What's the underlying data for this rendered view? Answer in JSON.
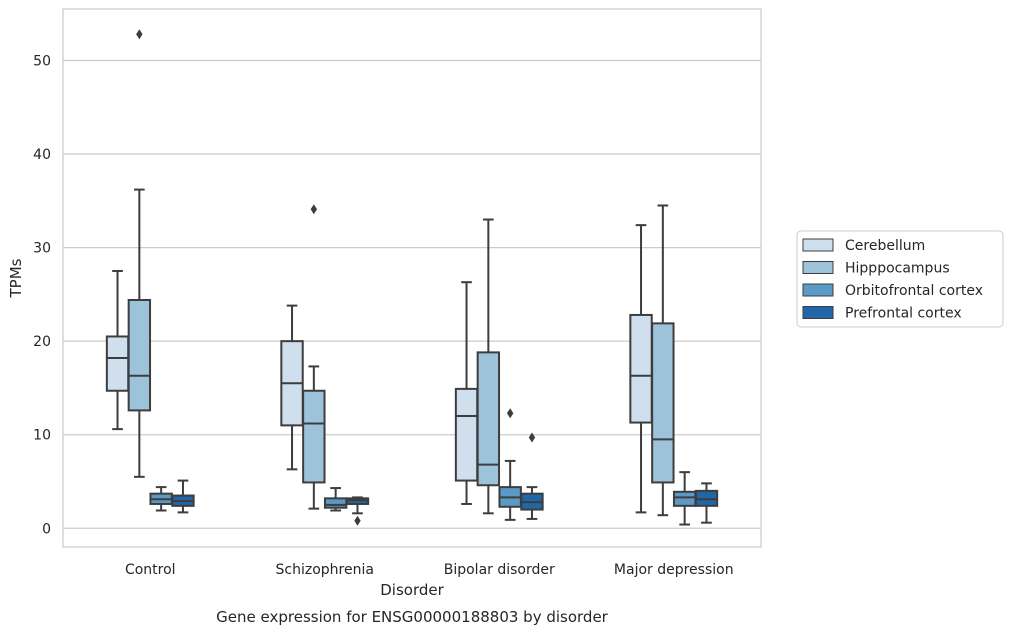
{
  "chart_data": {
    "type": "box",
    "caption": "Gene expression for ENSG00000188803 by disorder",
    "xlabel": "Disorder",
    "ylabel": "TPMs",
    "ylim": [
      -2,
      55.5
    ],
    "yticks": [
      0,
      10,
      20,
      30,
      40,
      50
    ],
    "grid": "horizontal",
    "legend_placement": "right",
    "categories": [
      "Control",
      "Schizophrenia",
      "Bipolar disorder",
      "Major depression"
    ],
    "series": [
      {
        "name": "Cerebellum",
        "color": "#d0dfee",
        "boxes": [
          {
            "whisker_low": 10.6,
            "q1": 14.7,
            "median": 18.2,
            "q3": 20.5,
            "whisker_high": 27.5,
            "outliers": []
          },
          {
            "whisker_low": 6.3,
            "q1": 11.0,
            "median": 15.5,
            "q3": 20.0,
            "whisker_high": 23.8,
            "outliers": []
          },
          {
            "whisker_low": 2.6,
            "q1": 5.1,
            "median": 12.0,
            "q3": 14.9,
            "whisker_high": 26.3,
            "outliers": []
          },
          {
            "whisker_low": 1.7,
            "q1": 11.3,
            "median": 16.3,
            "q3": 22.8,
            "whisker_high": 32.4,
            "outliers": []
          }
        ]
      },
      {
        "name": "Hipppocampus",
        "color": "#9dc3db",
        "boxes": [
          {
            "whisker_low": 5.5,
            "q1": 12.6,
            "median": 16.3,
            "q3": 24.4,
            "whisker_high": 36.2,
            "outliers": [
              52.8
            ]
          },
          {
            "whisker_low": 2.1,
            "q1": 4.9,
            "median": 11.2,
            "q3": 14.7,
            "whisker_high": 17.3,
            "outliers": [
              34.1
            ]
          },
          {
            "whisker_low": 1.6,
            "q1": 4.6,
            "median": 6.8,
            "q3": 18.8,
            "whisker_high": 33.0,
            "outliers": []
          },
          {
            "whisker_low": 1.4,
            "q1": 4.9,
            "median": 9.5,
            "q3": 21.9,
            "whisker_high": 34.5,
            "outliers": []
          }
        ]
      },
      {
        "name": "Orbitofrontal cortex",
        "color": "#5b9ac6",
        "boxes": [
          {
            "whisker_low": 1.9,
            "q1": 2.6,
            "median": 3.1,
            "q3": 3.7,
            "whisker_high": 4.4,
            "outliers": []
          },
          {
            "whisker_low": 1.9,
            "q1": 2.2,
            "median": 2.5,
            "q3": 3.2,
            "whisker_high": 4.3,
            "outliers": []
          },
          {
            "whisker_low": 0.9,
            "q1": 2.3,
            "median": 3.3,
            "q3": 4.4,
            "whisker_high": 7.2,
            "outliers": [
              12.3
            ]
          },
          {
            "whisker_low": 0.4,
            "q1": 2.4,
            "median": 3.3,
            "q3": 3.9,
            "whisker_high": 6.0,
            "outliers": []
          }
        ]
      },
      {
        "name": "Prefrontal cortex",
        "color": "#2266a8",
        "boxes": [
          {
            "whisker_low": 1.7,
            "q1": 2.4,
            "median": 2.9,
            "q3": 3.5,
            "whisker_high": 5.1,
            "outliers": []
          },
          {
            "whisker_low": 1.6,
            "q1": 2.6,
            "median": 3.0,
            "q3": 3.2,
            "whisker_high": 3.3,
            "outliers": [
              0.8
            ]
          },
          {
            "whisker_low": 1.0,
            "q1": 2.0,
            "median": 2.8,
            "q3": 3.7,
            "whisker_high": 4.4,
            "outliers": [
              9.7
            ]
          },
          {
            "whisker_low": 0.6,
            "q1": 2.4,
            "median": 3.1,
            "q3": 4.0,
            "whisker_high": 4.8,
            "outliers": []
          }
        ]
      }
    ]
  }
}
